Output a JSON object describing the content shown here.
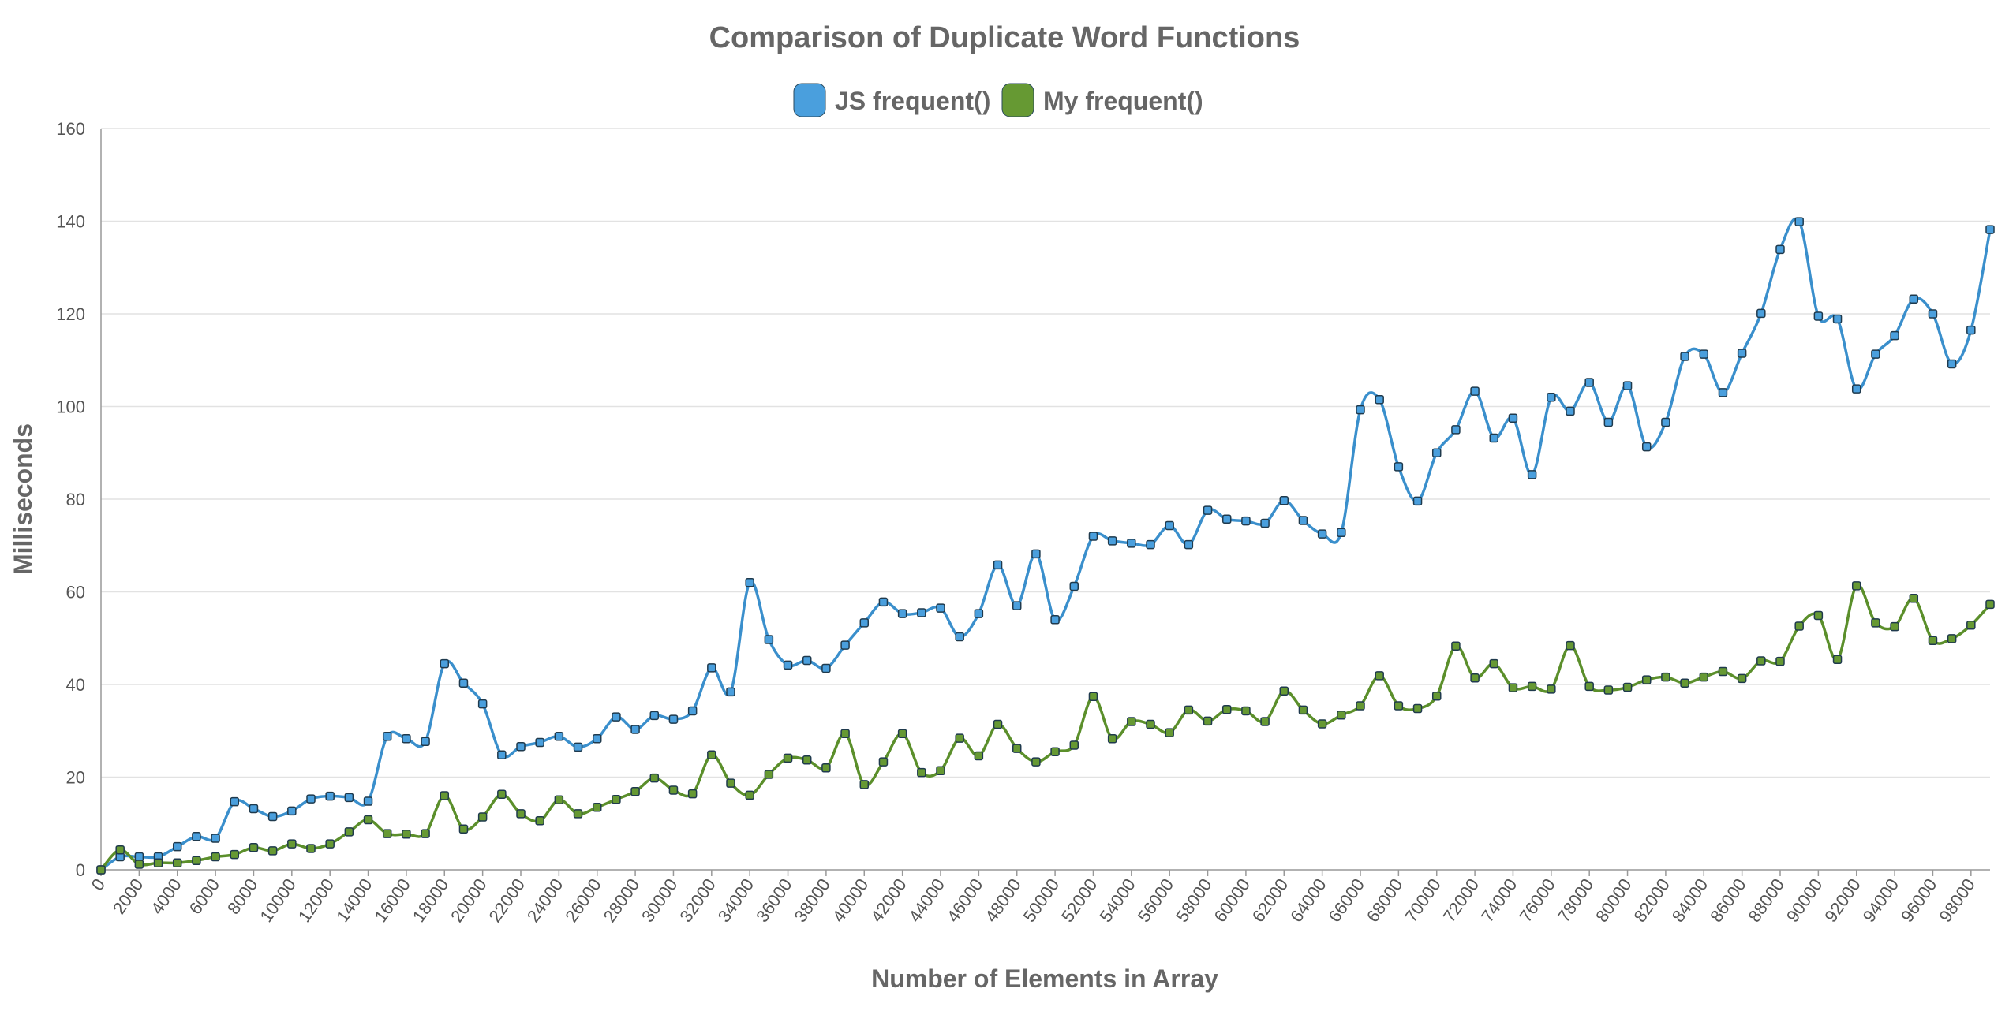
{
  "chart_data": {
    "type": "line",
    "title": "Comparison of Duplicate Word Functions",
    "xlabel": "Number of Elements in Array",
    "ylabel": "Milliseconds",
    "ylim": [
      0,
      160
    ],
    "yticks": [
      0,
      20,
      40,
      60,
      80,
      100,
      120,
      140,
      160
    ],
    "xlim": [
      0,
      99000
    ],
    "xtick_step": 2000,
    "grid": true,
    "legend_position": "top-center",
    "smooth": true,
    "x": [
      0,
      1000,
      2000,
      3000,
      4000,
      5000,
      6000,
      7000,
      8000,
      9000,
      10000,
      11000,
      12000,
      13000,
      14000,
      15000,
      16000,
      17000,
      18000,
      19000,
      20000,
      21000,
      22000,
      23000,
      24000,
      25000,
      26000,
      27000,
      28000,
      29000,
      30000,
      31000,
      32000,
      33000,
      34000,
      35000,
      36000,
      37000,
      38000,
      39000,
      40000,
      41000,
      42000,
      43000,
      44000,
      45000,
      46000,
      47000,
      48000,
      49000,
      50000,
      51000,
      52000,
      53000,
      54000,
      55000,
      56000,
      57000,
      58000,
      59000,
      60000,
      61000,
      62000,
      63000,
      64000,
      65000,
      66000,
      67000,
      68000,
      69000,
      70000,
      71000,
      72000,
      73000,
      74000,
      75000,
      76000,
      77000,
      78000,
      79000,
      80000,
      81000,
      82000,
      83000,
      84000,
      85000,
      86000,
      87000,
      88000,
      89000,
      90000,
      91000,
      92000,
      93000,
      94000,
      95000,
      96000,
      97000,
      98000,
      99000
    ],
    "series": [
      {
        "name": "JS frequent()",
        "color": "#3a8fcc",
        "marker_fill": "#4a9fdd",
        "values": [
          0,
          2.8,
          2.8,
          2.8,
          5.0,
          7.2,
          6.8,
          14.7,
          13.2,
          11.5,
          12.7,
          15.3,
          15.9,
          15.6,
          14.8,
          28.8,
          28.3,
          27.7,
          44.5,
          40.3,
          35.8,
          24.8,
          26.6,
          27.5,
          28.8,
          26.5,
          28.3,
          33.0,
          30.3,
          33.3,
          32.5,
          34.3,
          43.6,
          38.4,
          62.0,
          49.7,
          44.2,
          45.2,
          43.5,
          48.5,
          53.3,
          57.8,
          55.3,
          55.5,
          56.5,
          50.3,
          55.3,
          65.8,
          57.0,
          68.2,
          54.0,
          61.2,
          72.0,
          71.0,
          70.5,
          70.2,
          74.3,
          70.2,
          77.6,
          75.7,
          75.3,
          74.8,
          79.7,
          75.4,
          72.5,
          72.8,
          99.3,
          101.5,
          87.0,
          79.6,
          90.0,
          95.0,
          103.3,
          93.2,
          97.5,
          85.3,
          102.0,
          99.0,
          105.2,
          96.6,
          104.5,
          91.3,
          96.6,
          110.8,
          111.3,
          103.0,
          111.5,
          120.1,
          133.9,
          139.9,
          119.5,
          118.9,
          103.8,
          111.3,
          115.3,
          123.2,
          120.0,
          109.2,
          116.5,
          138.2
        ]
      },
      {
        "name": "My frequent()",
        "color": "#5b8f2b",
        "marker_fill": "#669933",
        "values": [
          0,
          4.3,
          1.2,
          1.5,
          1.5,
          2.0,
          2.8,
          3.3,
          4.8,
          4.1,
          5.6,
          4.6,
          5.6,
          8.2,
          10.8,
          7.8,
          7.7,
          7.8,
          16.0,
          8.8,
          11.4,
          16.3,
          12.1,
          10.6,
          15.1,
          12.1,
          13.5,
          15.2,
          16.9,
          19.8,
          17.2,
          16.4,
          24.8,
          18.7,
          16.1,
          20.6,
          24.1,
          23.7,
          22.0,
          29.4,
          18.4,
          23.3,
          29.4,
          21.0,
          21.4,
          28.4,
          24.6,
          31.4,
          26.2,
          23.3,
          25.5,
          26.9,
          37.4,
          28.3,
          32.0,
          31.4,
          29.6,
          34.5,
          32.1,
          34.6,
          34.3,
          32.0,
          38.6,
          34.5,
          31.5,
          33.4,
          35.4,
          41.9,
          35.4,
          34.8,
          37.5,
          48.3,
          41.4,
          44.5,
          39.3,
          39.6,
          39.0,
          48.4,
          39.6,
          38.8,
          39.4,
          41.0,
          41.6,
          40.3,
          41.6,
          42.8,
          41.3,
          45.1,
          45.0,
          52.6,
          54.9,
          45.4,
          61.3,
          53.3,
          52.5,
          58.6,
          49.5,
          49.9,
          52.8,
          57.3
        ]
      }
    ]
  }
}
